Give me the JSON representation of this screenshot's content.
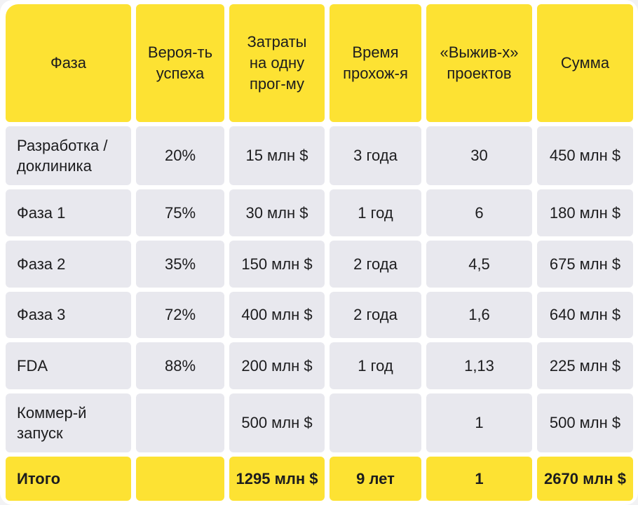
{
  "table": {
    "headers": [
      "Фаза",
      "Вероя-ть\nуспеха",
      "Затраты\nна одну\nпрог-му",
      "Время\nпрохож-я",
      "«Выжив-х»\nпроектов",
      "Сумма"
    ],
    "rows": [
      [
        "Разработка /\nдоклиника",
        "20%",
        "15 млн $",
        "3 года",
        "30",
        "450 млн $"
      ],
      [
        "Фаза 1",
        "75%",
        "30 млн $",
        "1 год",
        "6",
        "180 млн $"
      ],
      [
        "Фаза 2",
        "35%",
        "150 млн $",
        "2 года",
        "4,5",
        "675 млн $"
      ],
      [
        "Фаза 3",
        "72%",
        "400 млн $",
        "2 года",
        "1,6",
        "640 млн $"
      ],
      [
        "FDA",
        "88%",
        "200 млн $",
        "1 год",
        "1,13",
        "225 млн $"
      ],
      [
        "Коммер-й\nзапуск",
        "",
        "500 млн $",
        "",
        "1",
        "500 млн $"
      ]
    ],
    "total": [
      "Итого",
      "",
      "1295 млн $",
      "9 лет",
      "1",
      "2670 млн $"
    ]
  },
  "colors": {
    "header_bg": "#fde233",
    "cell_bg": "#e8e8ee",
    "page_bg": "#ffffff"
  }
}
